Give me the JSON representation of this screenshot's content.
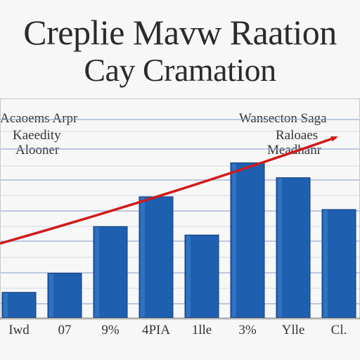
{
  "chart_data": {
    "type": "bar",
    "title_lines": [
      "Creplie Mavw Raation",
      "Cay Cramation"
    ],
    "annotation_left": [
      "Acaoems Arpr",
      "Kaeedity",
      "Alooner"
    ],
    "annotation_right": [
      "Wansecton Saga",
      "Raloaes",
      "Meadhanr"
    ],
    "categories": [
      "Iwd",
      "07",
      "9%",
      "4PIA",
      "1lle",
      "3%",
      "Ylle",
      "Cl."
    ],
    "values": [
      12,
      21,
      43,
      57,
      39,
      73,
      66,
      51
    ],
    "ylim": [
      0,
      100
    ],
    "grid": true,
    "colors": {
      "bar": "#1f5fb0",
      "trend": "#d01b1b",
      "grid": "#8fa6cf",
      "text": "#2b2b2b"
    },
    "trend": {
      "x": [
        "Iwd",
        "Cl."
      ],
      "y": [
        35,
        85
      ],
      "arrow": true
    }
  }
}
